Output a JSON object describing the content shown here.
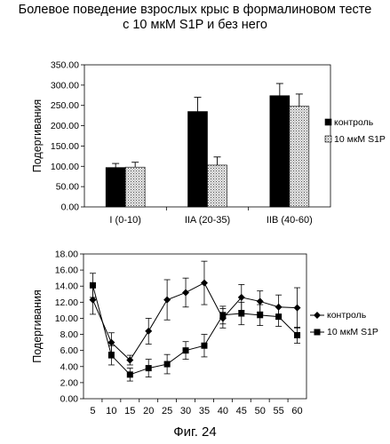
{
  "page": {
    "title_line1": "Болевое поведение взрослых крыс в формалиновом тесте",
    "title_line2": "с 10 мкМ S1P и без него",
    "caption": "Фиг. 24"
  },
  "chart_data": [
    {
      "type": "bar",
      "ylabel": "Подергивания",
      "ylim": [
        0,
        350
      ],
      "yticks": [
        "0.00",
        "50.00",
        "100.00",
        "150.00",
        "200.00",
        "250.00",
        "300.00",
        "350.00"
      ],
      "categories": [
        "I (0-10)",
        "IIA (20-35)",
        "IIB (40-60)"
      ],
      "legend_position": "right",
      "series": [
        {
          "name": "контроль",
          "values": [
            97,
            235,
            274
          ],
          "errors": [
            10,
            35,
            30
          ],
          "color": "#000000"
        },
        {
          "name": "10 мкМ S1P",
          "values": [
            98,
            103,
            248
          ],
          "errors": [
            12,
            20,
            30
          ],
          "color": "#c8c8c8"
        }
      ]
    },
    {
      "type": "line",
      "ylabel": "Подергивания",
      "ylim": [
        0,
        18
      ],
      "yticks": [
        "0.00",
        "2.00",
        "4.00",
        "6.00",
        "8.00",
        "10.00",
        "12.00",
        "14.00",
        "16.00",
        "18.00"
      ],
      "x": [
        5,
        10,
        15,
        20,
        25,
        30,
        35,
        40,
        45,
        50,
        55,
        60
      ],
      "xticks": [
        "5",
        "10",
        "15",
        "20",
        "25",
        "30",
        "35",
        "40",
        "45",
        "50",
        "55",
        "60"
      ],
      "legend_position": "right",
      "series": [
        {
          "name": "контроль",
          "marker": "diamond",
          "values": [
            12.3,
            7.0,
            4.8,
            8.4,
            12.3,
            13.2,
            14.4,
            10.0,
            12.6,
            12.1,
            11.4,
            11.3
          ],
          "errors": [
            1.8,
            1.2,
            0.6,
            1.6,
            2.5,
            1.8,
            2.7,
            1.2,
            1.6,
            1.3,
            1.5,
            2.5
          ]
        },
        {
          "name": "10 мкМ S1P",
          "marker": "square",
          "values": [
            14.1,
            5.4,
            3.0,
            3.8,
            4.3,
            6.0,
            6.6,
            10.4,
            10.6,
            10.4,
            10.2,
            7.9
          ],
          "errors": [
            1.5,
            1.2,
            0.8,
            1.1,
            1.2,
            1.1,
            1.4,
            1.1,
            1.4,
            1.3,
            1.2,
            1.0
          ]
        }
      ]
    }
  ]
}
